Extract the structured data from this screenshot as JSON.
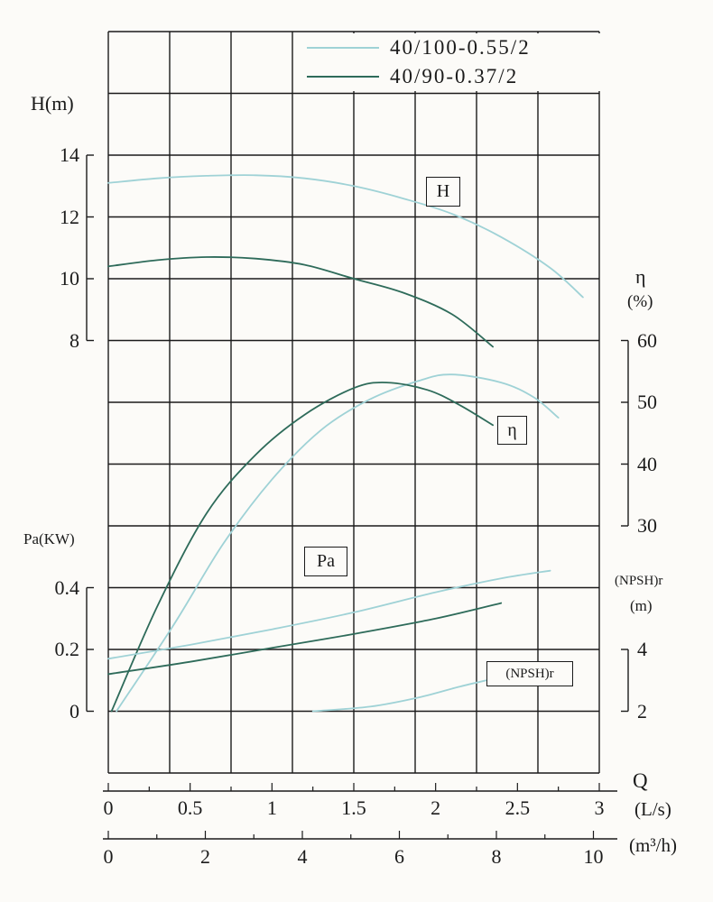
{
  "figure": {
    "background": "#fcfbf8",
    "ink": "#1b1b1b"
  },
  "legend": {
    "items": [
      {
        "label": "40/100-0.55/2",
        "color": "#9fd2d6"
      },
      {
        "label": "40/90-0.37/2",
        "color": "#2e6b5a"
      }
    ]
  },
  "axes": {
    "h": {
      "title": "H(m)",
      "ticks": [
        14,
        12,
        10,
        8
      ]
    },
    "pa": {
      "title": "Pa(KW)",
      "ticks": [
        0.4,
        0.2,
        0
      ]
    },
    "eta": {
      "title": "η",
      "unit": "(%)",
      "ticks": [
        60,
        50,
        40,
        30
      ]
    },
    "npsh": {
      "title": "(NPSH)r",
      "unit": "(m)",
      "ticks": [
        4,
        2
      ]
    },
    "q": {
      "title": "Q",
      "ls_unit": "(L/s)",
      "ls_ticks": [
        0,
        0.5,
        1,
        1.5,
        2,
        2.5,
        3
      ],
      "m3h_unit": "(m³/h)",
      "m3h_ticks": [
        0,
        2,
        4,
        6,
        8,
        10
      ]
    }
  },
  "curve_labels": {
    "h": "H",
    "eta": "η",
    "pa": "Pa",
    "npsh": "(NPSH)r"
  },
  "chart_data": {
    "type": "line",
    "x_axis": {
      "label": "Q",
      "units": [
        "L/s",
        "m³/h"
      ],
      "range_ls": [
        0,
        3
      ],
      "range_m3h": [
        0,
        10.8
      ]
    },
    "y_axes": [
      {
        "id": "H",
        "label": "H(m)",
        "range": [
          8,
          14
        ],
        "ticks": [
          8,
          10,
          12,
          14
        ]
      },
      {
        "id": "eta",
        "label": "η(%)",
        "range": [
          30,
          60
        ],
        "ticks": [
          30,
          40,
          50,
          60
        ]
      },
      {
        "id": "Pa",
        "label": "Pa(KW)",
        "range": [
          0,
          0.4
        ],
        "ticks": [
          0,
          0.2,
          0.4
        ]
      },
      {
        "id": "NPSH",
        "label": "(NPSH)r (m)",
        "range": [
          2,
          4
        ],
        "ticks": [
          2,
          4
        ]
      }
    ],
    "grid": {
      "cols": 8,
      "rows": 12,
      "visible": true
    },
    "legend_position": "top",
    "series": [
      {
        "name": "H 40/100-0.55/2",
        "model": "40/100-0.55/2",
        "axis": "H",
        "unit": "m",
        "color": "#9fd2d6",
        "points": [
          [
            0,
            13.1
          ],
          [
            0.3,
            13.25
          ],
          [
            0.6,
            13.33
          ],
          [
            0.9,
            13.35
          ],
          [
            1.2,
            13.25
          ],
          [
            1.5,
            13.0
          ],
          [
            1.8,
            12.6
          ],
          [
            2.1,
            12.1
          ],
          [
            2.4,
            11.35
          ],
          [
            2.7,
            10.35
          ],
          [
            2.9,
            9.4
          ]
        ]
      },
      {
        "name": "H 40/90-0.37/2",
        "model": "40/90-0.37/2",
        "axis": "H",
        "unit": "m",
        "color": "#2e6b5a",
        "points": [
          [
            0,
            10.4
          ],
          [
            0.3,
            10.6
          ],
          [
            0.6,
            10.7
          ],
          [
            0.9,
            10.65
          ],
          [
            1.2,
            10.45
          ],
          [
            1.5,
            10.0
          ],
          [
            1.8,
            9.55
          ],
          [
            2.1,
            8.85
          ],
          [
            2.35,
            7.8
          ]
        ]
      },
      {
        "name": "η 40/100-0.55/2",
        "model": "40/100-0.55/2",
        "axis": "eta",
        "unit": "%",
        "color": "#9fd2d6",
        "points": [
          [
            0.05,
            0
          ],
          [
            0.4,
            14
          ],
          [
            0.7,
            27
          ],
          [
            1.0,
            37.5
          ],
          [
            1.3,
            45.5
          ],
          [
            1.6,
            50.5
          ],
          [
            1.9,
            53.5
          ],
          [
            2.1,
            54.5
          ],
          [
            2.4,
            53.2
          ],
          [
            2.6,
            50.8
          ],
          [
            2.75,
            47.5
          ]
        ]
      },
      {
        "name": "η 40/90-0.37/2",
        "model": "40/90-0.37/2",
        "axis": "eta",
        "unit": "%",
        "color": "#2e6b5a",
        "points": [
          [
            0.02,
            0
          ],
          [
            0.3,
            17
          ],
          [
            0.6,
            32
          ],
          [
            0.9,
            41.5
          ],
          [
            1.2,
            48
          ],
          [
            1.5,
            52.3
          ],
          [
            1.7,
            53.2
          ],
          [
            1.95,
            52
          ],
          [
            2.15,
            49.5
          ],
          [
            2.35,
            46.3
          ]
        ]
      },
      {
        "name": "Pa 40/100-0.55/2",
        "model": "40/100-0.55/2",
        "axis": "Pa",
        "unit": "KW",
        "color": "#9fd2d6",
        "points": [
          [
            0,
            0.17
          ],
          [
            0.5,
            0.215
          ],
          [
            1.0,
            0.265
          ],
          [
            1.5,
            0.32
          ],
          [
            2.0,
            0.385
          ],
          [
            2.4,
            0.43
          ],
          [
            2.7,
            0.455
          ]
        ]
      },
      {
        "name": "Pa 40/90-0.37/2",
        "model": "40/90-0.37/2",
        "axis": "Pa",
        "unit": "KW",
        "color": "#2e6b5a",
        "points": [
          [
            0,
            0.12
          ],
          [
            0.5,
            0.16
          ],
          [
            1.0,
            0.205
          ],
          [
            1.5,
            0.25
          ],
          [
            2.0,
            0.3
          ],
          [
            2.4,
            0.35
          ]
        ]
      },
      {
        "name": "(NPSH)r 40/100-0.55/2",
        "model": "40/100-0.55/2",
        "axis": "NPSH",
        "unit": "m",
        "color": "#9fd2d6",
        "points": [
          [
            1.25,
            2.0
          ],
          [
            1.6,
            2.15
          ],
          [
            1.9,
            2.45
          ],
          [
            2.15,
            2.8
          ],
          [
            2.35,
            3.05
          ]
        ]
      }
    ]
  }
}
